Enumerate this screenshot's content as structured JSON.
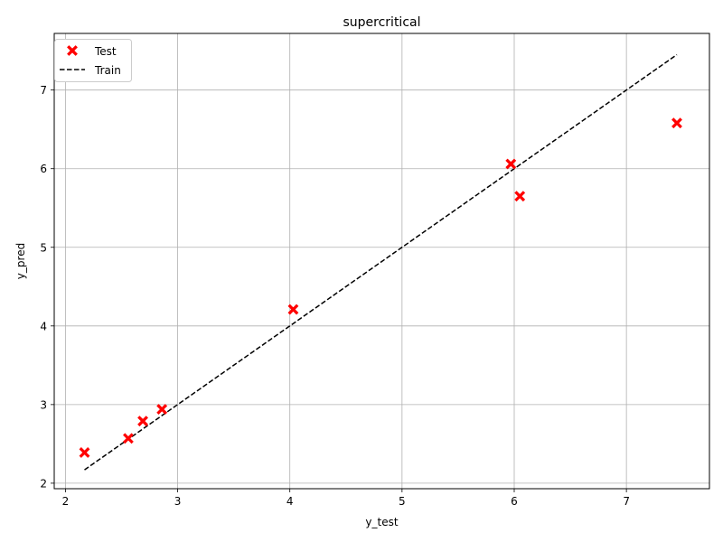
{
  "chart_data": {
    "type": "scatter",
    "title": "supercritical",
    "xlabel": "y_test",
    "ylabel": "y_pred",
    "xlim": [
      1.9,
      7.74
    ],
    "ylim": [
      1.93,
      7.72
    ],
    "x_ticks": [
      2,
      3,
      4,
      5,
      6,
      7
    ],
    "y_ticks": [
      2,
      3,
      4,
      5,
      6,
      7
    ],
    "x_tick_labels": [
      "2",
      "3",
      "4",
      "5",
      "6",
      "7"
    ],
    "y_tick_labels": [
      "2",
      "3",
      "4",
      "5",
      "6",
      "7"
    ],
    "grid": true,
    "legend_position": "top-left",
    "series": [
      {
        "name": "Test",
        "kind": "scatter",
        "marker": "X",
        "color": "#ff0000",
        "x": [
          2.17,
          2.56,
          2.69,
          2.86,
          4.03,
          5.97,
          6.05,
          7.45
        ],
        "y": [
          2.39,
          2.57,
          2.79,
          2.94,
          4.21,
          6.06,
          5.65,
          6.58
        ]
      },
      {
        "name": "Train",
        "kind": "line",
        "style": "dashed",
        "color": "#000000",
        "x": [
          2.17,
          2.56,
          2.69,
          2.86,
          4.03,
          5.97,
          6.05,
          7.45
        ],
        "y": [
          2.17,
          2.56,
          2.69,
          2.86,
          4.03,
          5.97,
          6.05,
          7.45
        ]
      }
    ]
  }
}
